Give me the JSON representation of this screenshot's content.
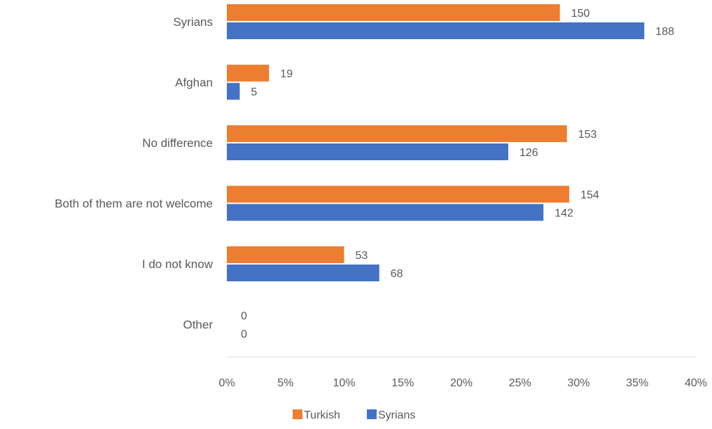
{
  "chart_data": {
    "type": "bar",
    "orientation": "horizontal",
    "title": "",
    "xlabel": "",
    "ylabel": "",
    "categories": [
      "Syrians",
      "Afghan",
      "No difference",
      "Both of them are not welcome",
      "I do not know",
      "Other"
    ],
    "series": [
      {
        "name": "Turkish",
        "color": "#ED7D31",
        "values": [
          28.4,
          3.6,
          29.0,
          29.2,
          10.0,
          0
        ],
        "labels": [
          "150",
          "19",
          "153",
          "154",
          "53",
          "0"
        ]
      },
      {
        "name": "Syrians",
        "color": "#4472C4",
        "values": [
          35.6,
          1.1,
          24.0,
          27.0,
          13.0,
          0
        ],
        "labels": [
          "188",
          "5",
          "126",
          "142",
          "68",
          "0"
        ]
      }
    ],
    "xlim": [
      0,
      40
    ],
    "x_ticks": [
      "0%",
      "5%",
      "10%",
      "15%",
      "20%",
      "25%",
      "30%",
      "35%",
      "40%"
    ],
    "grid": false,
    "legend": "bottom"
  }
}
